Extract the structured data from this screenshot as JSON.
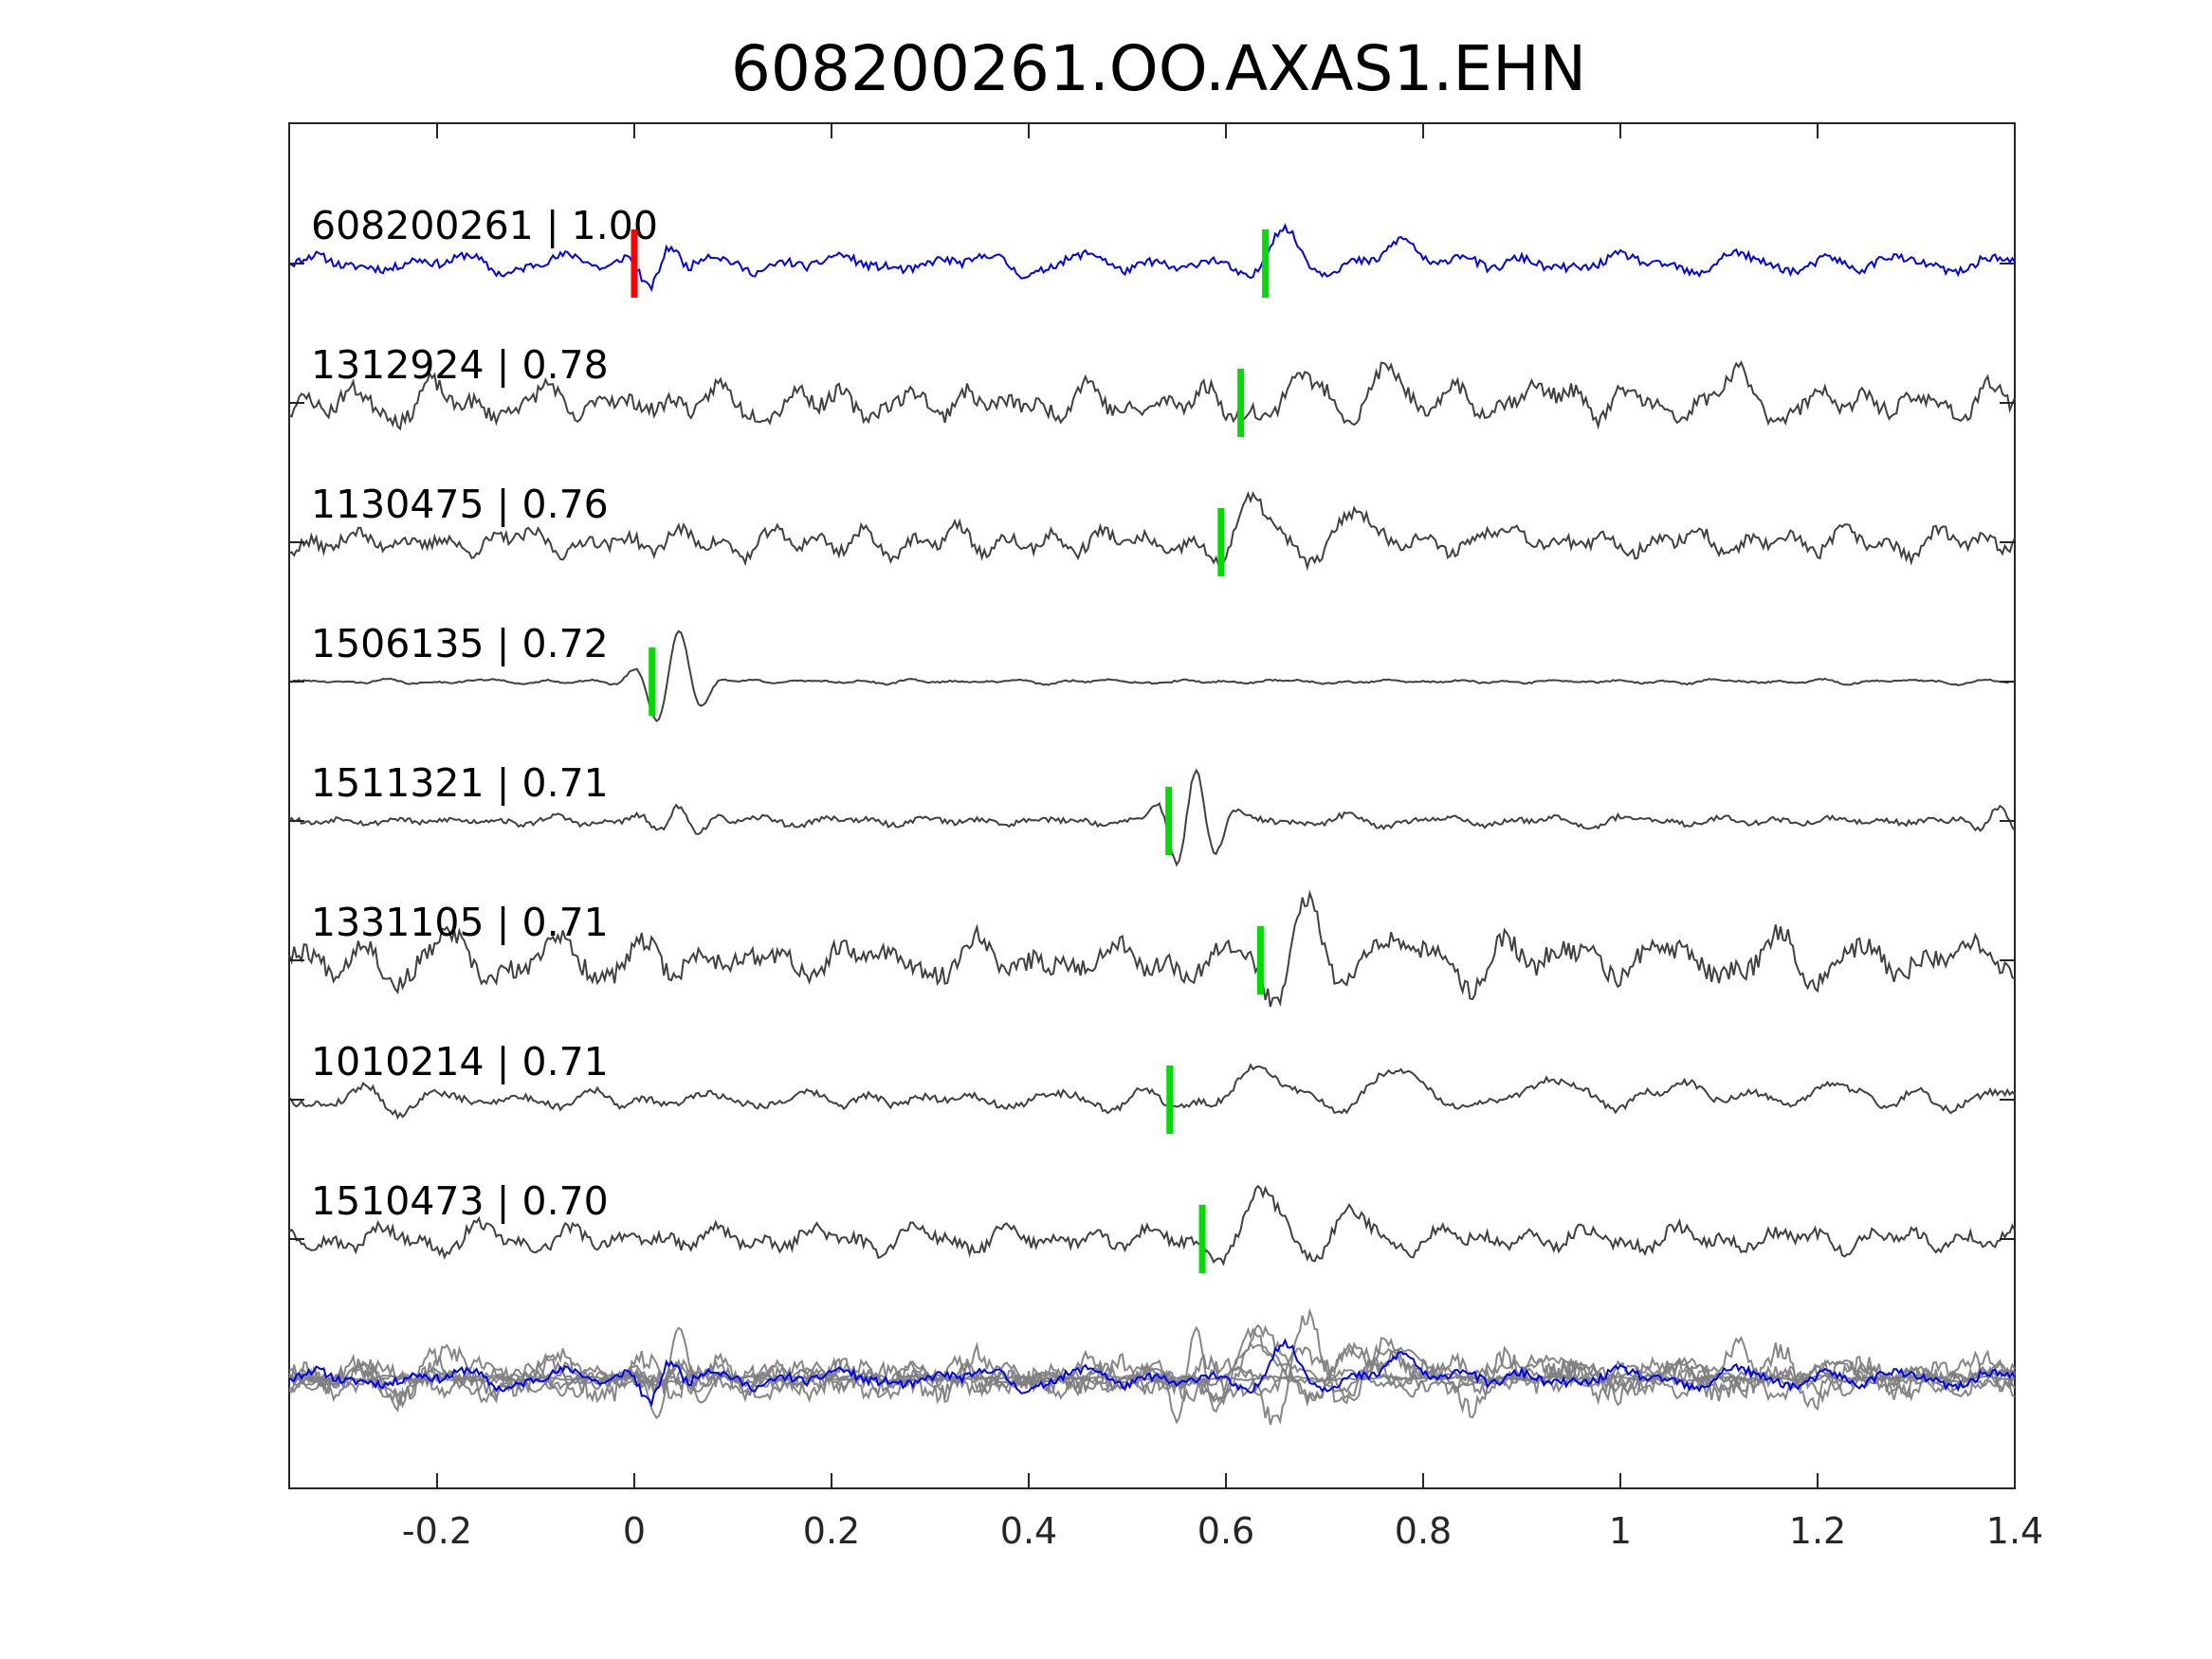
{
  "chart_data": {
    "type": "line",
    "title": "608200261.OO.AXAS1.EHN",
    "xlabel": "",
    "ylabel": "",
    "xlim": [
      -0.35,
      1.4
    ],
    "xticks": [
      -0.2,
      0,
      0.2,
      0.4,
      0.6,
      0.8,
      1,
      1.2,
      1.4
    ],
    "xtick_labels": [
      "-0.2",
      "0",
      "0.2",
      "0.4",
      "0.6",
      "0.8",
      "1",
      "1.2",
      "1.4"
    ],
    "grid": false,
    "colors": {
      "master": "#0000ff",
      "template": "#404040",
      "stack": "#808080",
      "master_pick": "#ff0000",
      "template_pick": "#00dd00"
    },
    "traces": [
      {
        "label": "608200261 | 1.00",
        "id": "608200261",
        "cc": 1.0,
        "pick": 0.0,
        "master_pick": 0.0,
        "pick_s": 0.64,
        "role": "master",
        "seed": 11,
        "noise": 0.55,
        "events": [
          {
            "t": 0.03,
            "a": 1.0,
            "f": 22
          },
          {
            "t": 0.65,
            "a": 2.4,
            "f": 10
          },
          {
            "t": 0.77,
            "a": 2.0,
            "f": 8
          }
        ]
      },
      {
        "label": "1312924 | 0.78",
        "id": "1312924",
        "cc": 0.78,
        "pick": 0.615,
        "role": "template",
        "seed": 23,
        "noise": 1.0,
        "events": [
          {
            "t": 0.67,
            "a": 2.3,
            "f": 10
          },
          {
            "t": 0.76,
            "a": 2.0,
            "f": 8
          },
          {
            "t": 0.9,
            "a": 1.2,
            "f": 7
          },
          {
            "t": 1.1,
            "a": 1.1,
            "f": 8
          }
        ]
      },
      {
        "label": "1130475 | 0.76",
        "id": "1130475",
        "cc": 0.76,
        "pick": 0.595,
        "role": "template",
        "seed": 37,
        "noise": 0.8,
        "events": [
          {
            "t": 0.62,
            "a": 2.5,
            "f": 9
          },
          {
            "t": 0.72,
            "a": 2.0,
            "f": 8
          },
          {
            "t": 0.86,
            "a": 1.0,
            "f": 7
          }
        ]
      },
      {
        "label": "1506135 | 0.72",
        "id": "1506135",
        "cc": 0.72,
        "pick": 0.018,
        "role": "template",
        "seed": 41,
        "noise": 0.1,
        "events": [
          {
            "t": 0.04,
            "a": 2.8,
            "f": 20
          }
        ]
      },
      {
        "label": "1511321 | 0.71",
        "id": "1511321",
        "cc": 0.71,
        "pick": 0.542,
        "role": "template",
        "seed": 53,
        "noise": 0.35,
        "events": [
          {
            "t": 0.04,
            "a": 0.9,
            "f": 22
          },
          {
            "t": 0.565,
            "a": 2.6,
            "f": 24
          },
          {
            "t": 1.38,
            "a": 0.7,
            "f": 22
          }
        ]
      },
      {
        "label": "1331105 | 0.71",
        "id": "1331105",
        "cc": 0.71,
        "pick": 0.635,
        "role": "template",
        "seed": 67,
        "noise": 1.25,
        "events": [
          {
            "t": 0.67,
            "a": 2.4,
            "f": 11
          },
          {
            "t": 0.74,
            "a": 2.0,
            "f": 9
          },
          {
            "t": 0.93,
            "a": 1.4,
            "f": 12
          }
        ]
      },
      {
        "label": "1010214 | 0.71",
        "id": "1010214",
        "cc": 0.71,
        "pick": 0.543,
        "role": "template",
        "seed": 79,
        "noise": 0.45,
        "events": [
          {
            "t": 0.62,
            "a": 2.5,
            "f": 6
          },
          {
            "t": 0.76,
            "a": 2.0,
            "f": 5
          },
          {
            "t": 0.92,
            "a": 1.5,
            "f": 5
          },
          {
            "t": 1.06,
            "a": 1.2,
            "f": 5
          },
          {
            "t": 1.2,
            "a": 1.0,
            "f": 5
          }
        ]
      },
      {
        "label": "1510473 | 0.70",
        "id": "1510473",
        "cc": 0.7,
        "pick": 0.576,
        "role": "template",
        "seed": 97,
        "noise": 0.75,
        "events": [
          {
            "t": 0.63,
            "a": 2.8,
            "f": 8
          },
          {
            "t": 0.72,
            "a": 1.2,
            "f": 8
          }
        ]
      }
    ],
    "stack": {
      "role": "stack",
      "seed": 131
    }
  }
}
